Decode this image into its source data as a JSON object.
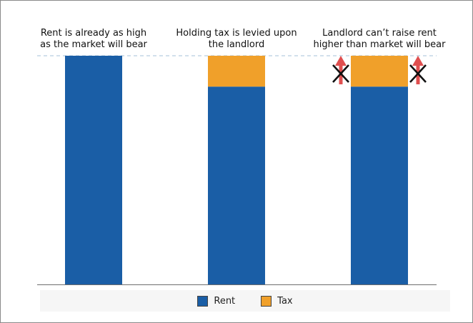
{
  "chart_data": {
    "type": "bar",
    "stacked": true,
    "categories": [
      "Rent is already as high as the market will bear",
      "Holding tax is levied upon the landlord",
      "Landlord can’t raise rent higher than market will bear"
    ],
    "annotations": [
      [
        "Rent is already as high",
        "as the market will bear"
      ],
      [
        "Holding tax is levied upon",
        "the landlord"
      ],
      [
        "Landlord can’t raise rent",
        "higher than market will bear"
      ]
    ],
    "series": [
      {
        "name": "Rent",
        "color": "#1a5ea6",
        "values": [
          100,
          86.5,
          86.5
        ]
      },
      {
        "name": "Tax",
        "color": "#f0a02a",
        "values": [
          0,
          13.5,
          13.5
        ]
      }
    ],
    "market_limit": 100,
    "ylim": [
      0,
      100
    ],
    "grid": false,
    "legend_position": "bottom",
    "reference_line": {
      "value": 100,
      "color": "#b8cde0",
      "style": "dashed"
    },
    "blocked_arrows": {
      "category_index": 2,
      "arrow_color": "#e05050",
      "cross_color": "#111111",
      "icon": "crossed-up-arrow-icon"
    }
  }
}
